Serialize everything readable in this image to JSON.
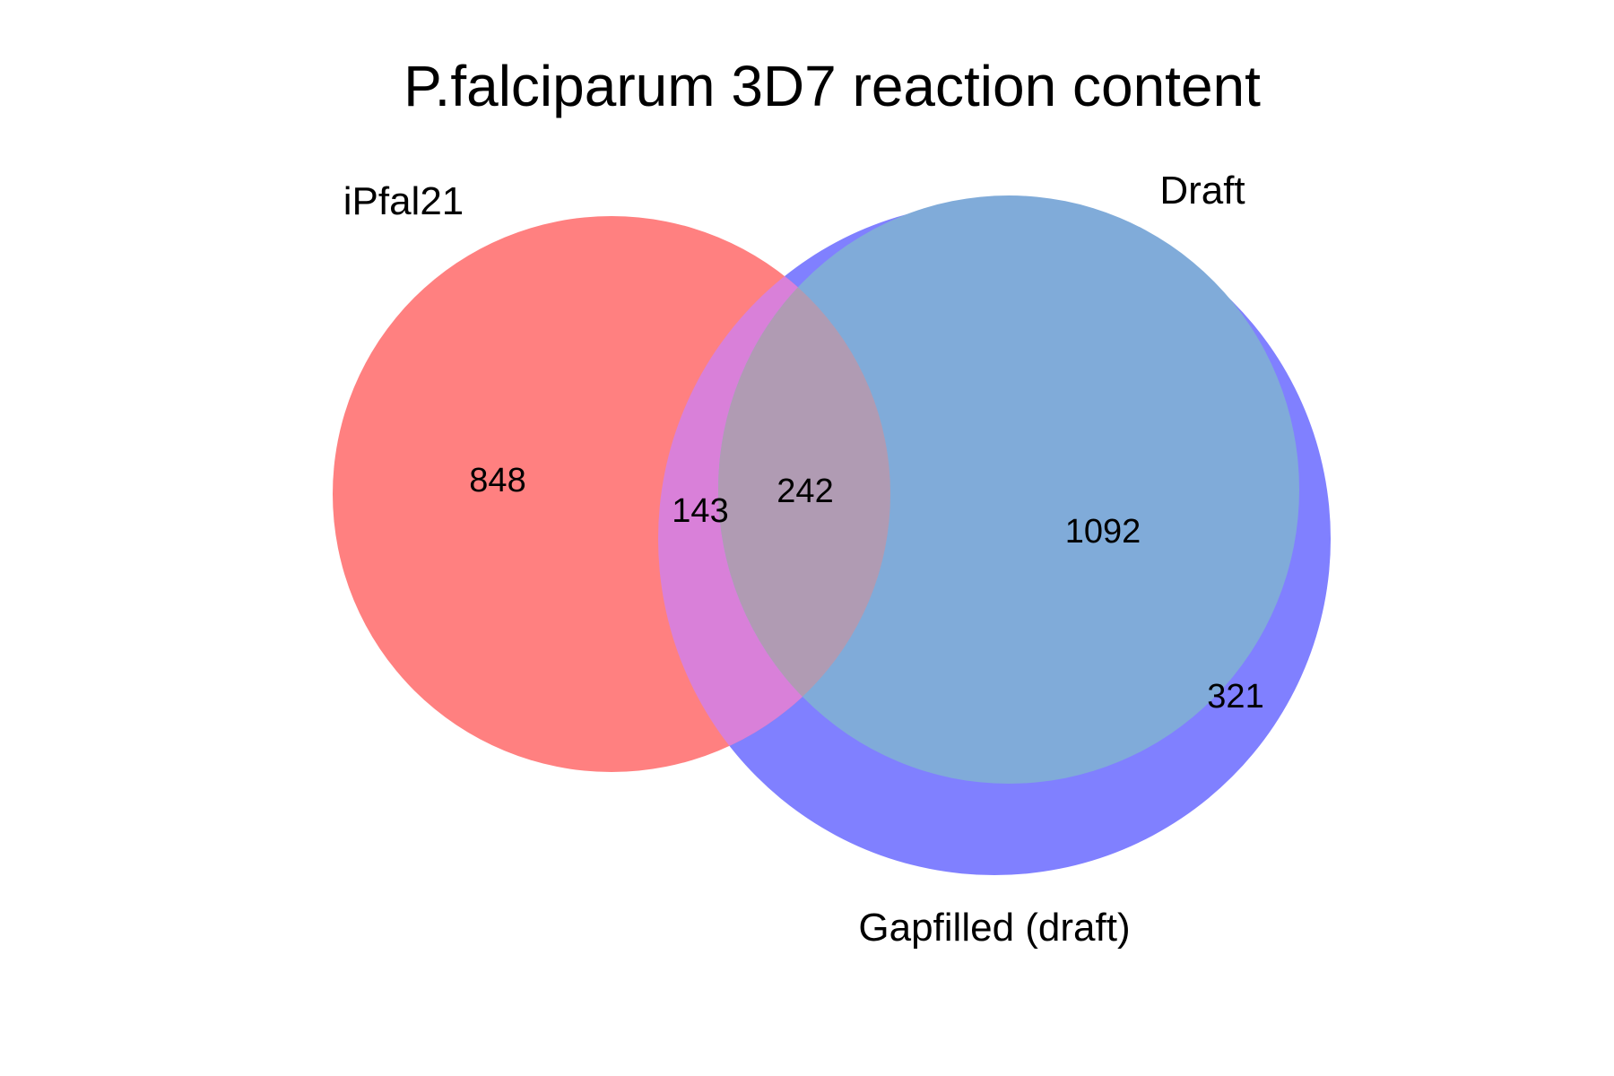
{
  "diagram": {
    "title": "P.falciparum 3D7 reaction content",
    "sets": [
      {
        "id": "ipfal21",
        "label": "iPfal21",
        "color": "#ff8080"
      },
      {
        "id": "gapfilled",
        "label": "Gapfilled (draft)",
        "color": "#8080ff"
      },
      {
        "id": "draft",
        "label": "Draft",
        "color": "#80abd9"
      }
    ],
    "regions": {
      "ipfal21_only": "848",
      "ipfal21_gapfilled": "143",
      "ipfal21_gapfilled_draft": "242",
      "gapfilled_draft": "1092",
      "gapfilled_only": "321"
    },
    "overlap_colors": {
      "ipfal21_gapfilled": "#d980d9",
      "ipfal21_gapfilled_draft": "#b09bb3"
    }
  }
}
